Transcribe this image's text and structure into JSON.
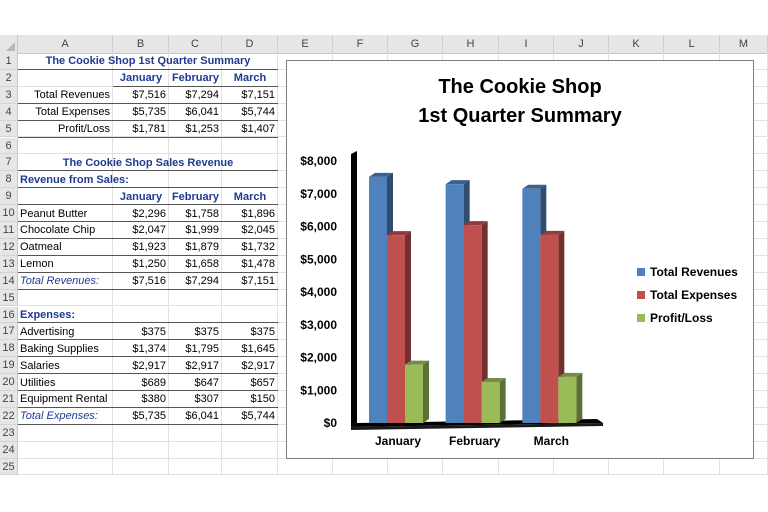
{
  "sheet": {
    "columns": [
      "A",
      "B",
      "C",
      "D",
      "E",
      "F",
      "G",
      "H",
      "I",
      "J",
      "K",
      "L",
      "M"
    ],
    "rows": [
      "1",
      "2",
      "3",
      "4",
      "5",
      "6",
      "7",
      "8",
      "9",
      "10",
      "11",
      "12",
      "13",
      "14",
      "15",
      "16",
      "17",
      "18",
      "19",
      "20",
      "21",
      "22",
      "23",
      "24",
      "25"
    ],
    "summary_title": "The Cookie Shop 1st Quarter Summary",
    "month_headers": [
      "January",
      "February",
      "March"
    ],
    "summary_rows": [
      {
        "label": "Total Revenues",
        "values": [
          "$7,516",
          "$7,294",
          "$7,151"
        ]
      },
      {
        "label": "Total Expenses",
        "values": [
          "$5,735",
          "$6,041",
          "$5,744"
        ]
      },
      {
        "label": "Profit/Loss",
        "values": [
          "$1,781",
          "$1,253",
          "$1,407"
        ]
      }
    ],
    "sales_title": "The Cookie Shop Sales Revenue",
    "revenue_header": "Revenue from Sales:",
    "sales_month_headers": [
      "January",
      "February",
      "March"
    ],
    "sales_rows": [
      {
        "label": "Peanut Butter",
        "values": [
          "$2,296",
          "$1,758",
          "$1,896"
        ]
      },
      {
        "label": "Chocolate Chip",
        "values": [
          "$2,047",
          "$1,999",
          "$2,045"
        ]
      },
      {
        "label": "Oatmeal",
        "values": [
          "$1,923",
          "$1,879",
          "$1,732"
        ]
      },
      {
        "label": "Lemon",
        "values": [
          "$1,250",
          "$1,658",
          "$1,478"
        ]
      }
    ],
    "total_revenues": {
      "label": "Total Revenues:",
      "values": [
        "$7,516",
        "$7,294",
        "$7,151"
      ]
    },
    "expenses_header": "Expenses:",
    "expense_rows": [
      {
        "label": "Advertising",
        "values": [
          "$375",
          "$375",
          "$375"
        ]
      },
      {
        "label": "Baking Supplies",
        "values": [
          "$1,374",
          "$1,795",
          "$1,645"
        ]
      },
      {
        "label": "Salaries",
        "values": [
          "$2,917",
          "$2,917",
          "$2,917"
        ]
      },
      {
        "label": "Utilities",
        "values": [
          "$689",
          "$647",
          "$657"
        ]
      },
      {
        "label": "Equipment Rental",
        "values": [
          "$380",
          "$307",
          "$150"
        ]
      }
    ],
    "total_expenses": {
      "label": "Total Expenses:",
      "values": [
        "$5,735",
        "$6,041",
        "$5,744"
      ]
    }
  },
  "chart_data": {
    "type": "bar",
    "title_line1": "The Cookie Shop",
    "title_line2": "1st Quarter Summary",
    "categories": [
      "January",
      "February",
      "March"
    ],
    "series": [
      {
        "name": "Total Revenues",
        "values": [
          7516,
          7294,
          7151
        ],
        "color": "#4f81bd"
      },
      {
        "name": "Total Expenses",
        "values": [
          5735,
          6041,
          5744
        ],
        "color": "#c0504d"
      },
      {
        "name": "Profit/Loss",
        "values": [
          1781,
          1253,
          1407
        ],
        "color": "#9bbb59"
      }
    ],
    "y_ticks": [
      "$0",
      "$1,000",
      "$2,000",
      "$3,000",
      "$4,000",
      "$5,000",
      "$6,000",
      "$7,000",
      "$8,000"
    ],
    "ylim": [
      0,
      8000
    ],
    "legend_position": "right",
    "style": "3d-clustered-column"
  }
}
